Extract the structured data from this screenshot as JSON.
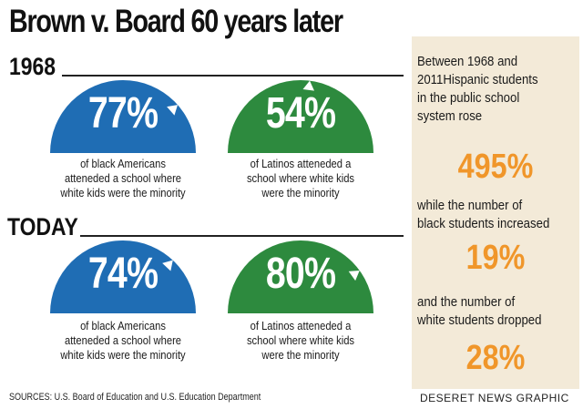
{
  "title": "Brown v. Board 60 years later",
  "labels": {
    "year_1968": "1968",
    "year_today": "TODAY"
  },
  "colors": {
    "black_americans": "#1f6db4",
    "latinos": "#2d8a3e",
    "highlight": "#f0962a",
    "sidebar_bg": "#f3ead8"
  },
  "chart_data": {
    "type": "gauge",
    "title": "Brown v. Board 60 years later",
    "panels": [
      {
        "period": "1968",
        "group": "black Americans",
        "value": 77,
        "label": "77%",
        "caption": [
          "of black Americans",
          "atteneded a school where",
          "white kids were the minority"
        ]
      },
      {
        "period": "1968",
        "group": "Latinos",
        "value": 54,
        "label": "54%",
        "caption": [
          "of Latinos atteneded a",
          "school where white kids",
          "were the minority"
        ]
      },
      {
        "period": "TODAY",
        "group": "black Americans",
        "value": 74,
        "label": "74%",
        "caption": [
          "of black Americans",
          "atteneded a school where",
          "white kids were the minority"
        ]
      },
      {
        "period": "TODAY",
        "group": "Latinos",
        "value": 80,
        "label": "80%",
        "caption": [
          "of Latinos atteneded a",
          "school where white kids",
          "were the minority"
        ]
      }
    ]
  },
  "sidebar": {
    "intro": [
      "Between 1968 and",
      "2011Hispanic students",
      "in the public school",
      "system rose"
    ],
    "stat1": "495%",
    "mid1": [
      "while the number of",
      "black students increased"
    ],
    "stat2": "19%",
    "mid2": [
      "and the number of",
      "white students dropped"
    ],
    "stat3": "28%"
  },
  "footer": {
    "sources": "SOURCES: U.S. Board of Education and U.S. Education Department",
    "brand": "DESERET NEWS GRAPHIC"
  }
}
